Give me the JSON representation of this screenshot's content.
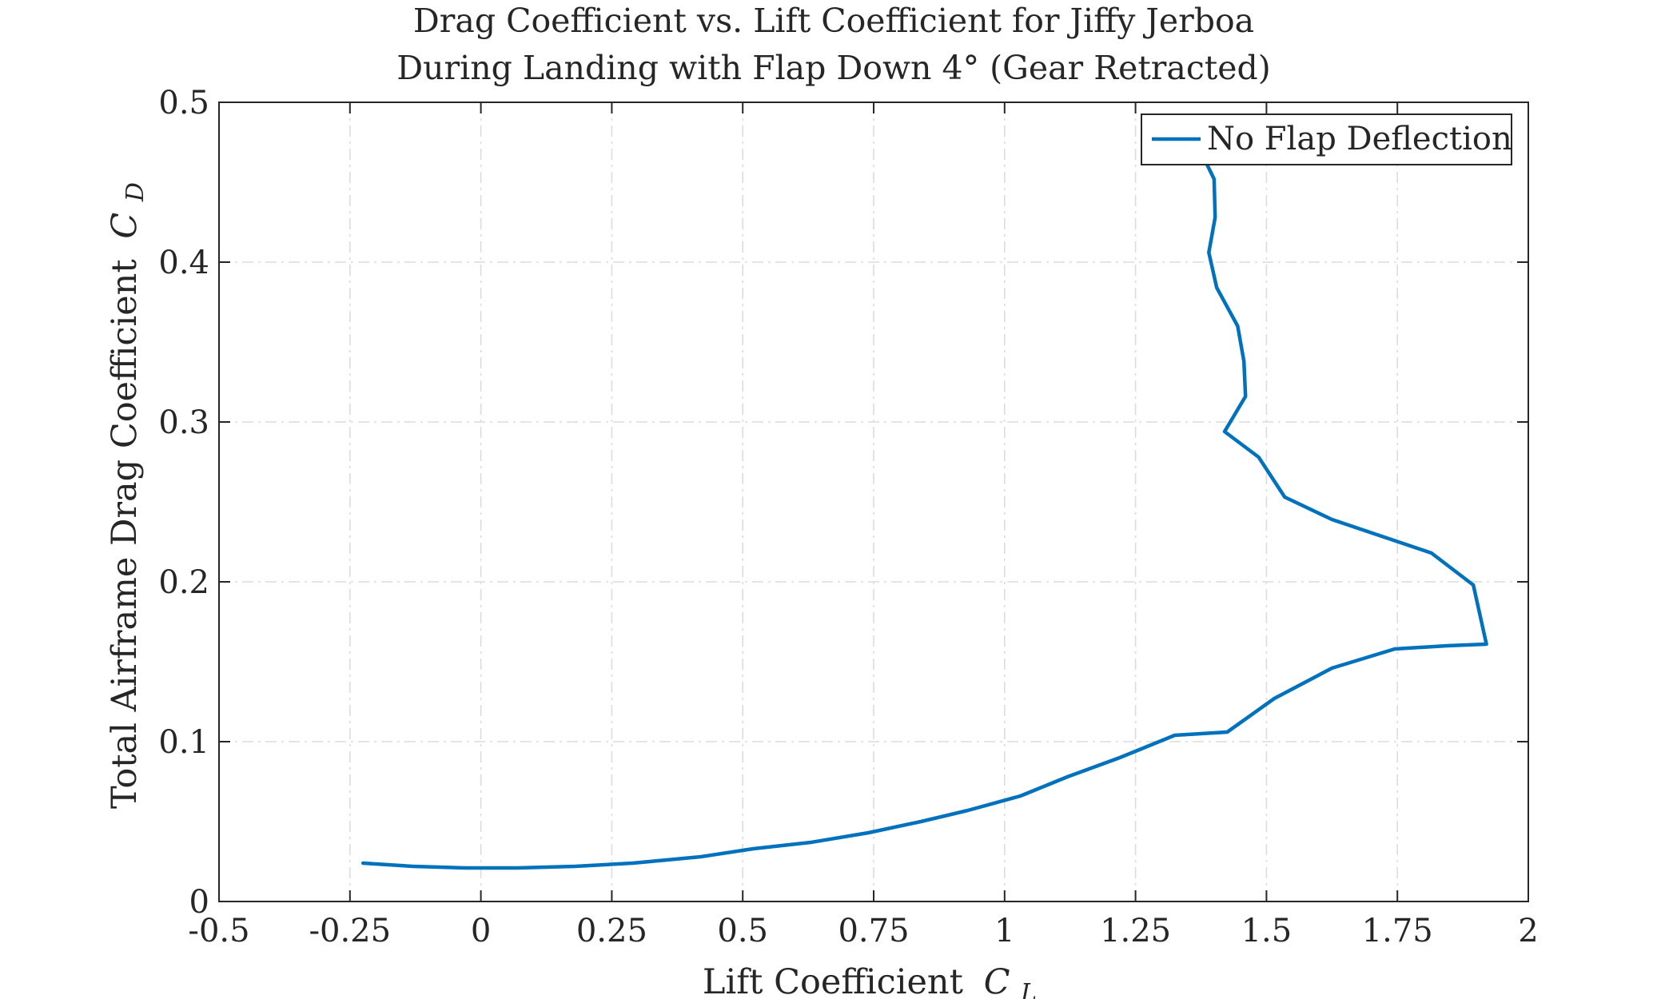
{
  "chart_data": {
    "type": "line",
    "title": [
      "Drag Coefficient vs. Lift Coefficient for Jiffy Jerboa",
      "During Landing with Flap Down 4° (Gear Retracted)"
    ],
    "xlabel": "Lift Coefficient",
    "xlabel_symbol": "C",
    "xlabel_sub": "L",
    "ylabel": "Total Airframe Drag Coefficient",
    "ylabel_symbol": "C",
    "ylabel_sub": "D",
    "xlim": [
      -0.5,
      2
    ],
    "ylim": [
      0,
      0.5
    ],
    "xticks": [
      -0.5,
      -0.25,
      0,
      0.25,
      0.5,
      0.75,
      1,
      1.25,
      1.5,
      1.75,
      2
    ],
    "xtick_labels": [
      "-0.5",
      "-0.25",
      "0",
      "0.25",
      "0.5",
      "0.75",
      "1",
      "1.25",
      "1.5",
      "1.75",
      "2"
    ],
    "yticks": [
      0,
      0.1,
      0.2,
      0.3,
      0.4,
      0.5
    ],
    "ytick_labels": [
      "0",
      "0.1",
      "0.2",
      "0.3",
      "0.4",
      "0.5"
    ],
    "grid": true,
    "legend_position": "top-right",
    "series": [
      {
        "name": "No Flap Deflection",
        "color": "#0072BD",
        "x": [
          -0.225,
          -0.13,
          -0.03,
          0.07,
          0.18,
          0.29,
          0.42,
          0.52,
          0.63,
          0.74,
          0.84,
          0.93,
          1.03,
          1.12,
          1.22,
          1.325,
          1.425,
          1.515,
          1.625,
          1.745,
          1.845,
          1.92,
          1.895,
          1.815,
          1.625,
          1.535,
          1.485,
          1.42,
          1.46,
          1.457,
          1.445,
          1.405,
          1.39,
          1.402,
          1.4,
          1.385
        ],
        "y": [
          0.024,
          0.022,
          0.021,
          0.021,
          0.022,
          0.024,
          0.028,
          0.033,
          0.037,
          0.043,
          0.05,
          0.057,
          0.066,
          0.078,
          0.09,
          0.104,
          0.106,
          0.127,
          0.146,
          0.158,
          0.16,
          0.161,
          0.198,
          0.218,
          0.239,
          0.253,
          0.278,
          0.294,
          0.316,
          0.338,
          0.36,
          0.384,
          0.406,
          0.428,
          0.452,
          0.462
        ]
      }
    ]
  }
}
